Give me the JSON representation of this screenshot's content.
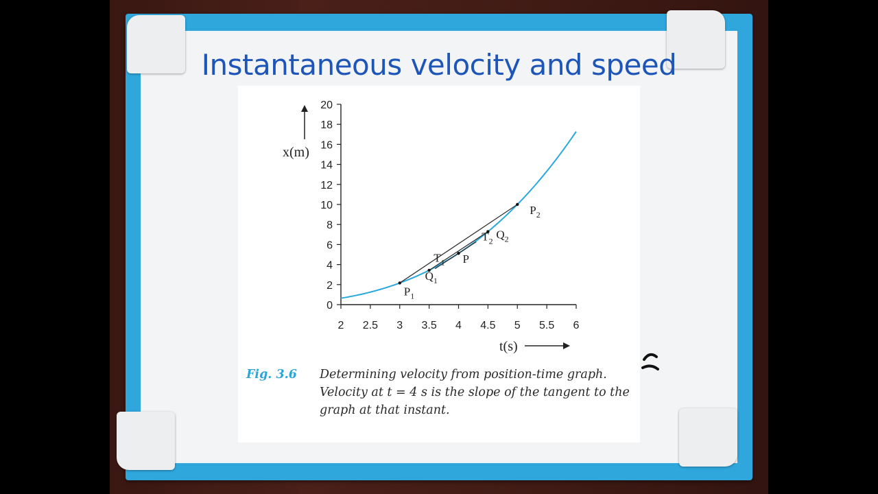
{
  "slide": {
    "title": "Instantaneous velocity and speed"
  },
  "figure": {
    "caption_label": "Fig. 3.6",
    "caption_text": "Determining velocity from position-time graph. Velocity at t = 4 s is the slope of the tangent to the graph at that instant."
  },
  "chart_data": {
    "type": "line",
    "xlabel": "t(s)",
    "ylabel": "x(m)",
    "xlim": [
      2,
      6
    ],
    "ylim": [
      0,
      20
    ],
    "x_ticks": [
      "2",
      "2.5",
      "3",
      "3.5",
      "4",
      "4.5",
      "5",
      "5.5",
      "6"
    ],
    "y_ticks": [
      "0",
      "2",
      "4",
      "6",
      "8",
      "10",
      "12",
      "14",
      "16",
      "18",
      "20"
    ],
    "curve_color": "#29a8dd",
    "series": [
      {
        "x": [
          2.0,
          2.5,
          3.0,
          3.5,
          4.0,
          4.5,
          5.0,
          5.5,
          6.0
        ],
        "values": [
          0.64,
          1.25,
          2.16,
          3.43,
          5.12,
          7.29,
          10.0,
          13.31,
          17.28
        ]
      }
    ],
    "points": [
      {
        "label": "P",
        "sub": "1",
        "x": 3.0,
        "y": 2.16
      },
      {
        "label": "Q",
        "sub": "1",
        "x": 3.5,
        "y": 3.43
      },
      {
        "label": "T",
        "sub": "1",
        "x": 3.6,
        "y": 3.73
      },
      {
        "label": "P",
        "sub": "",
        "x": 4.0,
        "y": 5.12
      },
      {
        "label": "T",
        "sub": "2",
        "x": 4.3,
        "y": 6.0
      },
      {
        "label": "Q",
        "sub": "2",
        "x": 4.5,
        "y": 7.29
      },
      {
        "label": "P",
        "sub": "2",
        "x": 5.0,
        "y": 10.0
      }
    ]
  }
}
